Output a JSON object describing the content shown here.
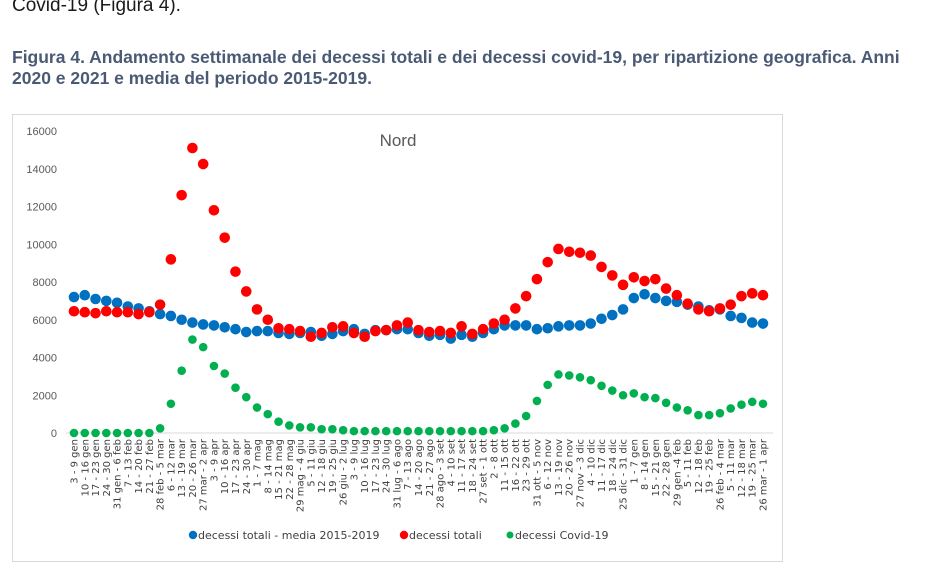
{
  "document": {
    "intro_text": "Covid-19 (Figura 4).",
    "figure_caption": "Figura 4. Andamento settimanale dei decessi totali e dei decessi covid-19, per ripartizione geografica. Anni 2020 e 2021 e media del periodo 2015-2019."
  },
  "chart_data": {
    "type": "scatter",
    "title": "Nord",
    "xlabel": "",
    "ylabel": "",
    "ylim": [
      0,
      16000
    ],
    "yticks": [
      0,
      2000,
      4000,
      6000,
      8000,
      10000,
      12000,
      14000,
      16000
    ],
    "grid": false,
    "legend_position": "bottom",
    "categories": [
      "3 - 9 gen",
      "10 - 16 gen",
      "17 - 23 gen",
      "24 - 30 gen",
      "31 gen - 6 feb",
      "7 - 13 feb",
      "14 - 20 feb",
      "21 - 27 feb",
      "28 feb - 5 mar",
      "6 - 12 mar",
      "13 - 19 mar",
      "20 - 26 mar",
      "27 mar - 2 apr",
      "3 - 9 apr",
      "10 - 16 apr",
      "17 - 23 apr",
      "24 - 30 apr",
      "1 - 7 mag",
      "8 - 14 mag",
      "15 - 21 mag",
      "22 - 28 mag",
      "29 mag - 4 giu",
      "5 - 11 giu",
      "12 - 18 giu",
      "19 - 25 giu",
      "26 giu - 2 lug",
      "3 - 9 lug",
      "10 - 16 lug",
      "17 - 23 lug",
      "24 - 30 lug",
      "31 lug - 6 ago",
      "7 - 13 ago",
      "14 - 20 ago",
      "21 - 27 ago",
      "28 ago - 3 set",
      "4 - 10 set",
      "11 - 17 set",
      "18 - 24 set",
      "27 set - 1 ott",
      "2 - 8 ott",
      "11 - 15 ott",
      "16 - 22 ott",
      "23 - 29 ott",
      "31 ott - 5 nov",
      "6 - 12 nov",
      "13 - 19 nov",
      "20 - 26 nov",
      "27 nov - 3 dic",
      "4 - 10 dic",
      "11 - 17 dic",
      "18 - 24 dic",
      "25 dic - 31 dic",
      "1 - 7 gen",
      "8 - 14 gen",
      "15 - 21 gen",
      "22 - 28 gen",
      "29 gen -4 feb",
      "5 - 11 feb",
      "12 - 18 feb",
      "19 - 25 feb",
      "26 feb - 4 mar",
      "5 - 11 mar",
      "12 - 18 mar",
      "19 - 25 mar",
      "26 mar - 1 apr"
    ],
    "series": [
      {
        "name": "decessi totali - media 2015-2019",
        "color": "#0070c0",
        "values": [
          7200,
          7300,
          7100,
          7000,
          6900,
          6700,
          6600,
          6450,
          6300,
          6200,
          6000,
          5850,
          5750,
          5700,
          5600,
          5500,
          5350,
          5400,
          5400,
          5300,
          5250,
          5300,
          5350,
          5150,
          5250,
          5400,
          5500,
          5250,
          5450,
          5450,
          5500,
          5500,
          5300,
          5150,
          5200,
          5000,
          5200,
          5100,
          5300,
          5500,
          5700,
          5700,
          5700,
          5500,
          5550,
          5650,
          5700,
          5700,
          5800,
          6050,
          6250,
          6550,
          7150,
          7350,
          7150,
          7000,
          6950,
          6800,
          6700,
          6500,
          6550,
          6200,
          6100,
          5850,
          5800
        ]
      },
      {
        "name": "decessi totali",
        "color": "#ff0000",
        "values": [
          6450,
          6400,
          6350,
          6450,
          6400,
          6400,
          6300,
          6400,
          6800,
          9200,
          12600,
          15100,
          14250,
          11800,
          10350,
          8550,
          7500,
          6550,
          6000,
          5550,
          5500,
          5400,
          5100,
          5300,
          5600,
          5650,
          5300,
          5100,
          5400,
          5450,
          5700,
          5850,
          5450,
          5350,
          5400,
          5300,
          5650,
          5250,
          5500,
          5800,
          6000,
          6600,
          7250,
          8150,
          9050,
          9750,
          9600,
          9550,
          9400,
          8800,
          8350,
          7850,
          8250,
          8050,
          8150,
          7650,
          7300,
          6850,
          6550,
          6450,
          6600,
          6800,
          7250,
          7400,
          7300
        ]
      },
      {
        "name": "decessi Covid-19",
        "color": "#00b050",
        "values": [
          0,
          0,
          0,
          0,
          0,
          0,
          0,
          0,
          250,
          1550,
          3300,
          4950,
          4550,
          3550,
          3150,
          2400,
          1900,
          1350,
          1000,
          600,
          400,
          300,
          300,
          200,
          200,
          150,
          100,
          100,
          100,
          100,
          100,
          100,
          100,
          100,
          100,
          100,
          100,
          100,
          100,
          150,
          250,
          500,
          900,
          1700,
          2550,
          3100,
          3050,
          2950,
          2800,
          2500,
          2250,
          2000,
          2100,
          1900,
          1850,
          1600,
          1350,
          1200,
          950,
          950,
          1050,
          1300,
          1500,
          1650,
          1550
        ]
      }
    ]
  }
}
